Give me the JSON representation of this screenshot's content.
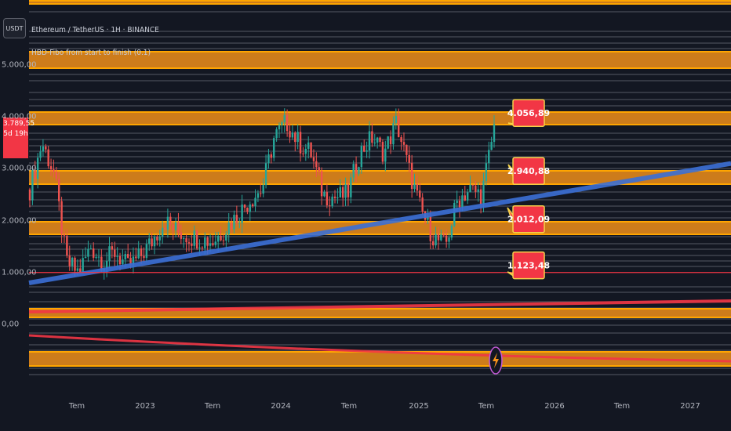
{
  "toolbar": {
    "currency_button": "USDT"
  },
  "header": {
    "symbol_title": "Ethereum / TetherUS · 1H · BINANCE",
    "indicator_title": "HBD-Fibo from start to finish (0.1)"
  },
  "price_tag": {
    "price": "3.789,55",
    "countdown": "5d 19h"
  },
  "colors": {
    "background": "#131722",
    "band": "#f7931a",
    "band_border": "#ffa500",
    "grid": "#6b6f7a",
    "trend": "#3b6fd6",
    "red_line": "#f23645",
    "label_bg": "#f23645",
    "label_border": "#f5d24a",
    "candle_up": "#26a69a",
    "candle_down": "#ef5350"
  },
  "icons": {
    "event_marker": "lightning-icon"
  },
  "chart_data": {
    "type": "candlestick",
    "title": "",
    "y_axis": {
      "min": 0,
      "max": 5500,
      "ticks": [
        "5.000,00",
        "4.000,00",
        "3.000,00",
        "2.000,00",
        "1.000,00",
        "0,00"
      ],
      "tick_values": [
        5000,
        4000,
        3000,
        2000,
        1000,
        0
      ]
    },
    "x_axis": {
      "ticks": [
        "Tem",
        "2023",
        "Tem",
        "2024",
        "Tem",
        "2025",
        "Tem",
        "2026",
        "Tem",
        "2027"
      ]
    },
    "price_path": [
      [
        "2022-05",
        2600
      ],
      [
        "2022-06",
        3500
      ],
      [
        "2022-07",
        2900
      ],
      [
        "2022-08",
        1200
      ],
      [
        "2022-09",
        1000
      ],
      [
        "2022-10",
        1500
      ],
      [
        "2022-11",
        1200
      ],
      [
        "2022-12",
        1400
      ],
      [
        "2023-01",
        1100
      ],
      [
        "2023-02",
        1300
      ],
      [
        "2023-03",
        1600
      ],
      [
        "2023-04",
        2000
      ],
      [
        "2023-05",
        1800
      ],
      [
        "2023-06",
        1700
      ],
      [
        "2023-07",
        1650
      ],
      [
        "2023-08",
        1600
      ],
      [
        "2023-09",
        1850
      ],
      [
        "2023-10",
        2100
      ],
      [
        "2023-11",
        2400
      ],
      [
        "2023-12",
        2600
      ],
      [
        "2024-01",
        3600
      ],
      [
        "2024-02",
        3900
      ],
      [
        "2024-03",
        3500
      ],
      [
        "2024-04",
        3300
      ],
      [
        "2024-05",
        2500
      ],
      [
        "2024-06",
        2450
      ],
      [
        "2024-07",
        2500
      ],
      [
        "2024-08",
        3300
      ],
      [
        "2024-09",
        3600
      ],
      [
        "2024-10",
        3300
      ],
      [
        "2024-11",
        3900
      ],
      [
        "2024-12",
        3000
      ],
      [
        "2025-01",
        2200
      ],
      [
        "2025-02",
        1700
      ],
      [
        "2025-03",
        1500
      ],
      [
        "2025-04",
        2400
      ],
      [
        "2025-05",
        2600
      ],
      [
        "2025-06",
        2500
      ],
      [
        "2025-07",
        3800
      ]
    ],
    "trend_line": {
      "start": 800,
      "end": 3100
    },
    "fib_levels": [
      {
        "value": 1123.48,
        "label": "1.123,48"
      },
      {
        "value": 2012.09,
        "label": "2.012,09"
      },
      {
        "value": 2940.88,
        "label": "2.940,88"
      },
      {
        "value": 4056.89,
        "label": "4.056,89"
      }
    ],
    "horizontal_line": 1000,
    "grid": true,
    "legend": "none"
  }
}
